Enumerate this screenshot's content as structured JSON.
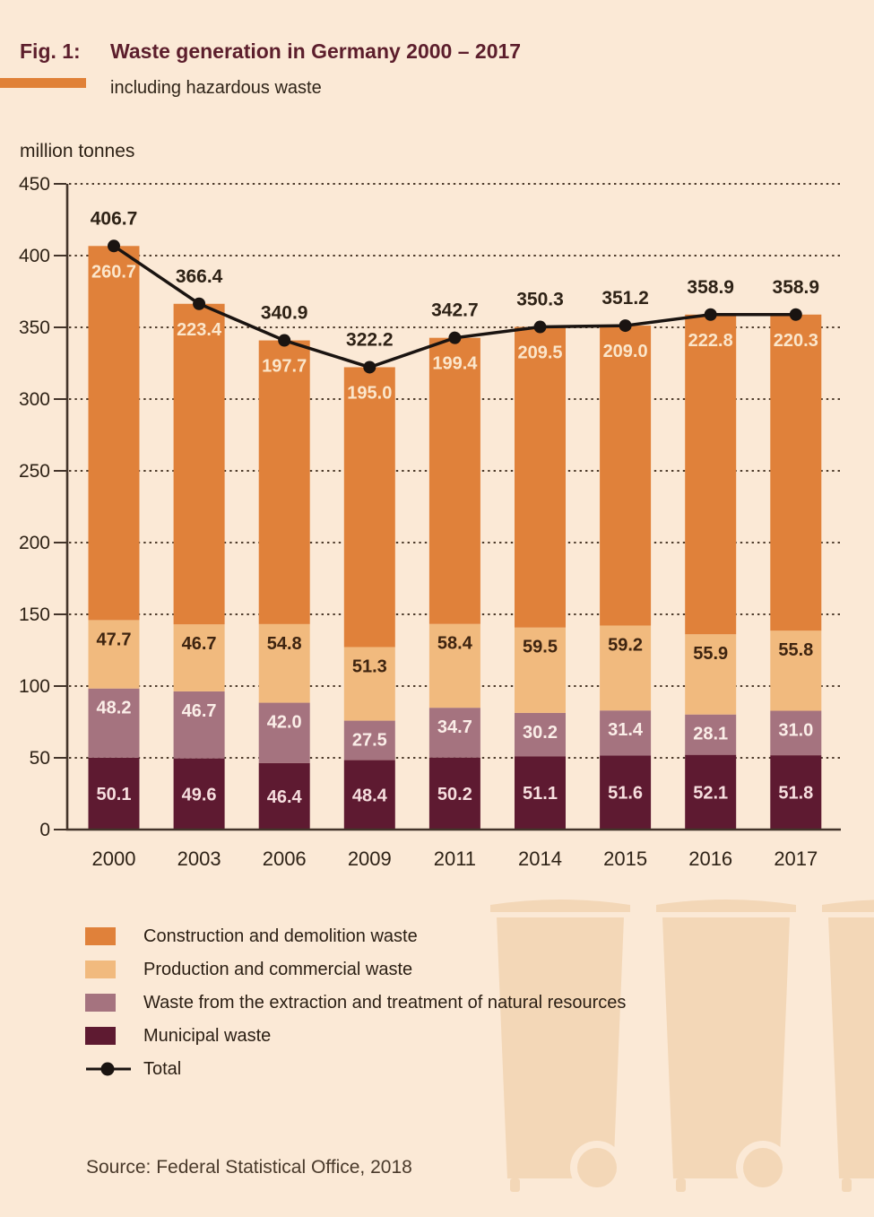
{
  "figure": {
    "fig_label": "Fig. 1:",
    "title": "Waste generation in Germany 2000 – 2017",
    "subtitle": "including hazardous waste",
    "unit_label": "million tonnes",
    "source": "Source: Federal Statistical Office, 2018"
  },
  "colors": {
    "background": "#FBE9D6",
    "bin": "#F3D7B7",
    "title_maroon": "#5C1E2C",
    "accent_rule": "#E08138",
    "text_dark": "#2E2216",
    "axis": "#43342A",
    "gridline": "#4E3C2C",
    "line": "#1A1411"
  },
  "chart_data": {
    "type": "bar",
    "stacked": true,
    "title": "Waste generation in Germany 2000 – 2017",
    "subtitle": "including hazardous waste",
    "ylabel": "million tonnes",
    "xlabel": "",
    "ylim": [
      0,
      450
    ],
    "ytick_step": 50,
    "grid": "horizontal dotted",
    "legend_position": "bottom-left",
    "categories": [
      "2000",
      "2003",
      "2006",
      "2009",
      "2011",
      "2014",
      "2015",
      "2016",
      "2017"
    ],
    "series": [
      {
        "name": "Municipal waste",
        "key": "municipal-waste",
        "color": "#5E1A31",
        "label_color": "#F6DEDE",
        "values": [
          50.1,
          49.6,
          46.4,
          48.4,
          50.2,
          51.1,
          51.6,
          52.1,
          51.8
        ]
      },
      {
        "name": "Waste from the extraction and treatment of natural resources",
        "key": "extraction-waste",
        "color": "#A5737F",
        "label_color": "#FBEEE8",
        "values": [
          48.2,
          46.7,
          42.0,
          27.5,
          34.7,
          30.2,
          31.4,
          28.1,
          31.0
        ]
      },
      {
        "name": "Production and commercial waste",
        "key": "production-commercial-waste",
        "color": "#F1BA7E",
        "label_color": "#3E2410",
        "values": [
          47.7,
          46.7,
          54.8,
          51.3,
          58.4,
          59.5,
          59.2,
          55.9,
          55.8
        ]
      },
      {
        "name": "Construction and demolition waste",
        "key": "construction-demolition-waste",
        "color": "#E0813A",
        "label_color": "#FBE6CB",
        "values": [
          260.7,
          223.4,
          197.7,
          195.0,
          199.4,
          209.5,
          209.0,
          222.8,
          220.3
        ]
      }
    ],
    "line_series": {
      "name": "Total",
      "color": "#1A1411",
      "values": [
        406.7,
        366.4,
        340.9,
        322.2,
        342.7,
        350.3,
        351.2,
        358.9,
        358.9
      ]
    }
  },
  "legend": {
    "items": [
      {
        "label": "Construction and demolition waste",
        "color": "#E0813A"
      },
      {
        "label": "Production and commercial waste",
        "color": "#F1BA7E"
      },
      {
        "label": "Waste from the extraction and treatment of natural resources",
        "color": "#A5737F"
      },
      {
        "label": "Municipal waste",
        "color": "#5E1A31"
      }
    ],
    "total_label": "Total"
  }
}
